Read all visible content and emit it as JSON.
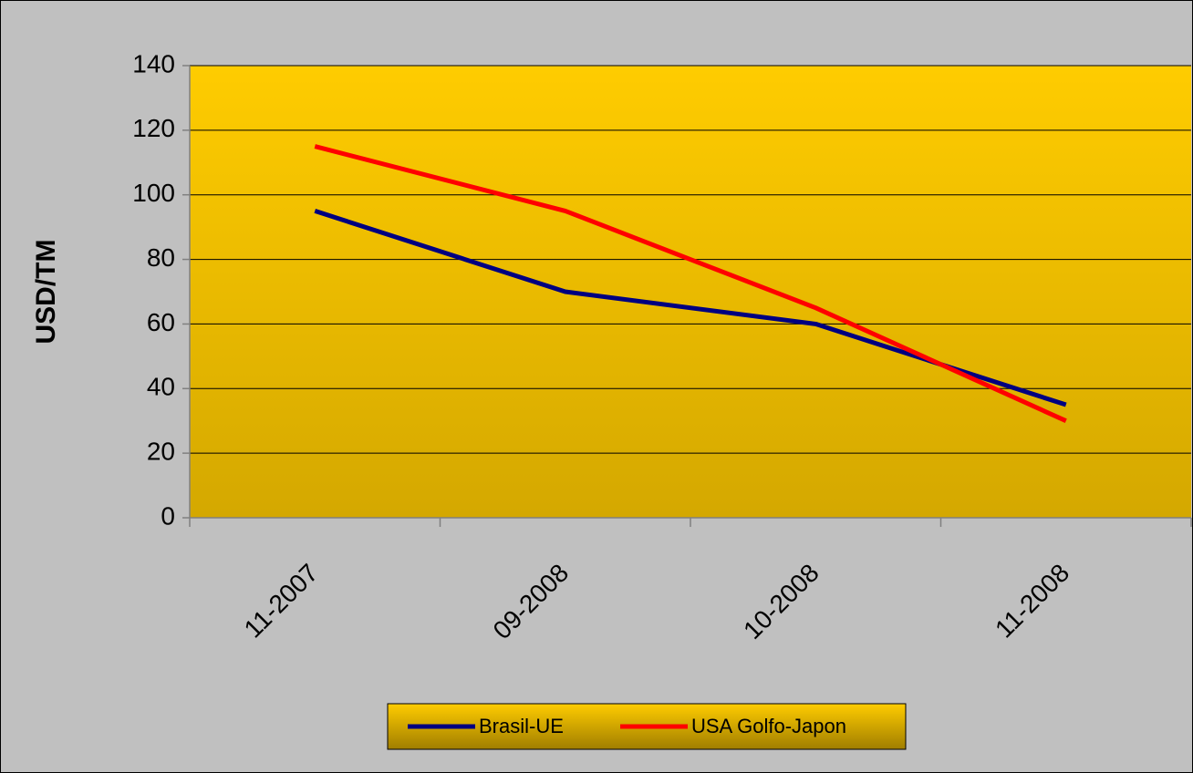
{
  "chart_data": {
    "type": "line",
    "y_label": "USD/TM",
    "categories": [
      "11-2007",
      "09-2008",
      "10-2008",
      "11-2008"
    ],
    "series": [
      {
        "name": "Brasil-UE",
        "color": "#000080",
        "values": [
          95,
          70,
          60,
          35
        ]
      },
      {
        "name": "USA Golfo-Japon",
        "color": "#ff0000",
        "values": [
          115,
          95,
          65,
          30
        ]
      }
    ],
    "ylim": [
      0,
      140
    ],
    "yticks": [
      0,
      20,
      40,
      60,
      80,
      100,
      120,
      140
    ],
    "grid": true,
    "legend": "bottom"
  }
}
